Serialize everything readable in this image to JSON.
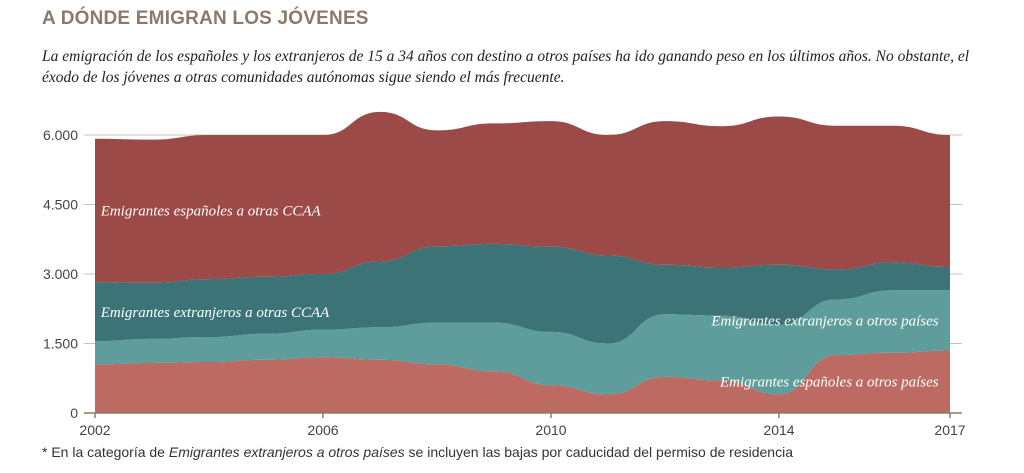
{
  "title": "A DÓNDE EMIGRAN LOS JÓVENES",
  "subtitle": "La emigración de los españoles y los extranjeros de 15 a 34 años con destino a otros países ha ido ganando peso en los últimos años. No obstante, el éxodo de los jóvenes a otras comunidades autónomas sigue siendo el más frecuente.",
  "note": {
    "prefix": "* En la categoría de ",
    "emph": "Emigrantes extranjeros a otros países",
    "suffix": " se incluyen las bajas por caducidad del permiso de residencia"
  },
  "colors": {
    "esp_ccaa": "#9b4a47",
    "ext_ccaa": "#3b7377",
    "ext_paises": "#5f9c9c",
    "esp_paises": "#bc6a62",
    "axis": "#8b7a6b",
    "grid": "#c9c2ba"
  },
  "chart_data": {
    "type": "area",
    "title": "",
    "xlabel": "",
    "ylabel": "",
    "ylim": [
      0,
      6000
    ],
    "yticks": [
      "0",
      "1.500",
      "3.000",
      "4.500",
      "6.000"
    ],
    "xticks": [
      "2002",
      "2006",
      "2010",
      "2014",
      "2017"
    ],
    "x": [
      2002,
      2003,
      2004,
      2005,
      2006,
      2007,
      2008,
      2009,
      2010,
      2011,
      2012,
      2013,
      2014,
      2015,
      2016,
      2017
    ],
    "series": [
      {
        "name": "Emigrantes españoles a otros países",
        "values": [
          1050,
          1080,
          1100,
          1150,
          1200,
          1150,
          1050,
          900,
          600,
          400,
          780,
          700,
          400,
          1250,
          1300,
          1350
        ]
      },
      {
        "name": "Emigrantes extranjeros a otros países",
        "values": [
          500,
          520,
          540,
          560,
          600,
          700,
          900,
          1050,
          1150,
          1100,
          1350,
          1400,
          1500,
          1200,
          1350,
          1300
        ]
      },
      {
        "name": "Emigrantes extranjeros a otras CCAA",
        "values": [
          1270,
          1210,
          1250,
          1230,
          1200,
          1420,
          1650,
          1700,
          1840,
          1900,
          1070,
          1040,
          1300,
          650,
          600,
          500
        ]
      },
      {
        "name": "Emigrantes españoles a otras CCAA",
        "values": [
          3100,
          3090,
          3110,
          3060,
          3000,
          3230,
          2500,
          2600,
          2710,
          2600,
          3100,
          3050,
          3200,
          3100,
          2950,
          2850
        ]
      }
    ],
    "labels": [
      {
        "series": 3,
        "text": "Emigrantes españoles a otras CCAA"
      },
      {
        "series": 2,
        "text": "Emigrantes extranjeros a otras CCAA"
      },
      {
        "series": 1,
        "text": "Emigrantes extranjeros a otros países"
      },
      {
        "series": 0,
        "text": "Emigrantes españoles a otros países"
      }
    ],
    "legend": "none",
    "grid": true
  }
}
